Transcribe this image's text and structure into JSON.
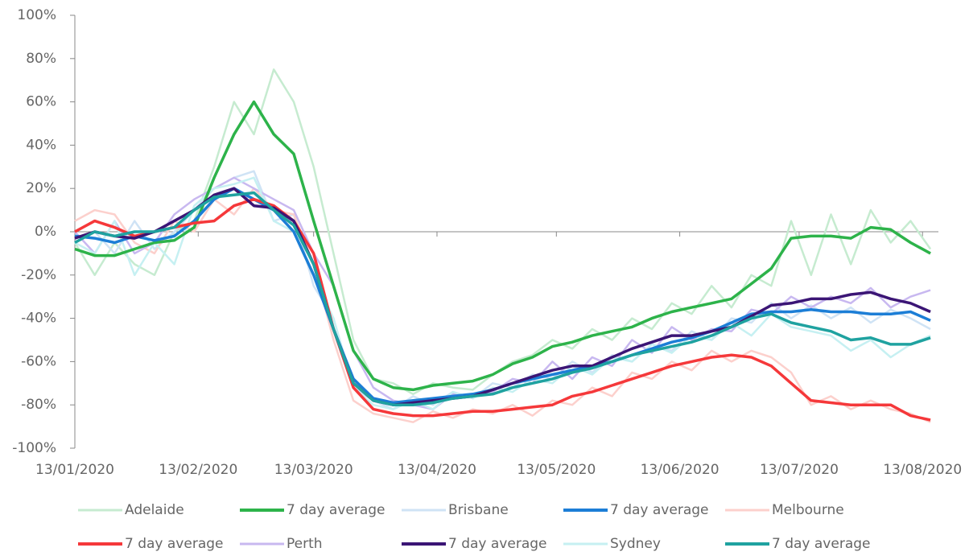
{
  "chart_data": {
    "type": "line",
    "x": [
      "13/01/2020",
      "18/01/2020",
      "23/01/2020",
      "28/01/2020",
      "02/02/2020",
      "07/02/2020",
      "12/02/2020",
      "17/02/2020",
      "22/02/2020",
      "27/02/2020",
      "03/03/2020",
      "08/03/2020",
      "13/03/2020",
      "18/03/2020",
      "23/03/2020",
      "28/03/2020",
      "02/04/2020",
      "07/04/2020",
      "12/04/2020",
      "17/04/2020",
      "22/04/2020",
      "27/04/2020",
      "02/05/2020",
      "07/05/2020",
      "12/05/2020",
      "17/05/2020",
      "22/05/2020",
      "27/05/2020",
      "01/06/2020",
      "06/06/2020",
      "11/06/2020",
      "16/06/2020",
      "21/06/2020",
      "26/06/2020",
      "01/07/2020",
      "06/07/2020",
      "11/07/2020",
      "16/07/2020",
      "21/07/2020",
      "26/07/2020",
      "31/07/2020",
      "05/08/2020",
      "10/08/2020",
      "15/08/2020"
    ],
    "series": [
      {
        "name": "Adelaide",
        "color": "#c6ebd0",
        "width": 2.5,
        "values": [
          -5,
          -20,
          -5,
          -15,
          -20,
          0,
          5,
          30,
          60,
          45,
          75,
          60,
          30,
          -10,
          -50,
          -68,
          -70,
          -75,
          -70,
          -72,
          -73,
          -66,
          -60,
          -57,
          -50,
          -54,
          -45,
          -50,
          -40,
          -45,
          -33,
          -38,
          -25,
          -35,
          -20,
          -25,
          5,
          -20,
          8,
          -15,
          10,
          -5,
          5,
          -8
        ]
      },
      {
        "name": "7 day average",
        "color": "#2db34a",
        "width": 3.5,
        "values": [
          -8,
          -11,
          -11,
          -8,
          -5,
          -4,
          2,
          25,
          45,
          60,
          45,
          36,
          5,
          -25,
          -55,
          -68,
          -72,
          -73,
          -71,
          -70,
          -69,
          -66,
          -61,
          -58,
          -53,
          -51,
          -48,
          -46,
          -44,
          -40,
          -37,
          -35,
          -33,
          -31,
          -24,
          -17,
          -3,
          -2,
          -2,
          -3,
          2,
          1,
          -5,
          -10
        ]
      },
      {
        "name": "Brisbane",
        "color": "#cfe3f5",
        "width": 2.5,
        "values": [
          -5,
          0,
          -10,
          5,
          -8,
          0,
          10,
          20,
          25,
          28,
          5,
          8,
          -25,
          -40,
          -72,
          -78,
          -82,
          -76,
          -80,
          -74,
          -77,
          -70,
          -72,
          -66,
          -68,
          -60,
          -65,
          -57,
          -60,
          -52,
          -55,
          -46,
          -50,
          -40,
          -42,
          -33,
          -40,
          -34,
          -40,
          -35,
          -42,
          -36,
          -40,
          -45
        ]
      },
      {
        "name": "7 day average",
        "color": "#1c7ed6",
        "width": 3.5,
        "values": [
          -2,
          -3,
          -5,
          -2,
          -4,
          -2,
          5,
          15,
          20,
          15,
          10,
          0,
          -20,
          -45,
          -68,
          -77,
          -79,
          -78,
          -77,
          -76,
          -75,
          -73,
          -70,
          -68,
          -66,
          -64,
          -62,
          -60,
          -57,
          -54,
          -51,
          -49,
          -46,
          -42,
          -38,
          -37,
          -37,
          -36,
          -37,
          -37,
          -38,
          -38,
          -37,
          -41
        ]
      },
      {
        "name": "Melbourne",
        "color": "#fcd0cc",
        "width": 2.5,
        "values": [
          5,
          10,
          8,
          -5,
          -10,
          5,
          0,
          15,
          8,
          20,
          10,
          8,
          -15,
          -50,
          -78,
          -84,
          -86,
          -88,
          -83,
          -86,
          -82,
          -84,
          -80,
          -85,
          -78,
          -80,
          -72,
          -76,
          -65,
          -68,
          -60,
          -64,
          -55,
          -60,
          -55,
          -58,
          -65,
          -80,
          -76,
          -82,
          -78,
          -82,
          -84,
          -88
        ]
      },
      {
        "name": "7 day average",
        "color": "#f5383a",
        "width": 3.5,
        "values": [
          0,
          5,
          2,
          -2,
          0,
          2,
          4,
          5,
          12,
          15,
          12,
          5,
          -10,
          -45,
          -72,
          -82,
          -84,
          -85,
          -85,
          -84,
          -83,
          -83,
          -82,
          -81,
          -80,
          -76,
          -74,
          -71,
          -68,
          -65,
          -62,
          -60,
          -58,
          -57,
          -58,
          -62,
          -70,
          -78,
          -79,
          -80,
          -80,
          -80,
          -85,
          -87
        ]
      },
      {
        "name": "Perth",
        "color": "#c8b8f0",
        "width": 2.5,
        "values": [
          0,
          -10,
          5,
          -10,
          -5,
          8,
          15,
          20,
          25,
          20,
          15,
          10,
          -10,
          -25,
          -55,
          -72,
          -78,
          -80,
          -82,
          -75,
          -76,
          -74,
          -68,
          -70,
          -60,
          -68,
          -58,
          -62,
          -50,
          -56,
          -44,
          -50,
          -45,
          -46,
          -36,
          -38,
          -30,
          -35,
          -30,
          -33,
          -26,
          -35,
          -30,
          -27
        ]
      },
      {
        "name": "7 day average",
        "color": "#3b1575",
        "width": 3.5,
        "values": [
          -3,
          0,
          -2,
          -3,
          0,
          5,
          10,
          17,
          20,
          12,
          11,
          5,
          -15,
          -45,
          -70,
          -78,
          -80,
          -79,
          -78,
          -77,
          -76,
          -73,
          -70,
          -67,
          -64,
          -62,
          -62,
          -58,
          -54,
          -51,
          -48,
          -48,
          -46,
          -44,
          -39,
          -34,
          -33,
          -31,
          -31,
          -29,
          -28,
          -31,
          -33,
          -37
        ]
      },
      {
        "name": "Sydney",
        "color": "#c6f0f2",
        "width": 2.5,
        "values": [
          -5,
          -10,
          5,
          -20,
          -5,
          -15,
          12,
          20,
          22,
          25,
          5,
          0,
          -20,
          -40,
          -72,
          -80,
          -82,
          -78,
          -82,
          -74,
          -77,
          -72,
          -74,
          -68,
          -70,
          -62,
          -66,
          -58,
          -60,
          -52,
          -56,
          -48,
          -50,
          -42,
          -48,
          -38,
          -44,
          -46,
          -48,
          -55,
          -50,
          -58,
          -52,
          -48
        ]
      },
      {
        "name": "7 day average",
        "color": "#1fa2a0",
        "width": 3.5,
        "values": [
          -5,
          0,
          -2,
          0,
          0,
          2,
          10,
          16,
          17,
          18,
          10,
          3,
          -15,
          -45,
          -70,
          -78,
          -80,
          -80,
          -79,
          -77,
          -76,
          -75,
          -72,
          -70,
          -68,
          -65,
          -63,
          -60,
          -57,
          -55,
          -53,
          -51,
          -48,
          -44,
          -40,
          -38,
          -42,
          -44,
          -46,
          -50,
          -49,
          -52,
          -52,
          -49
        ]
      }
    ],
    "xlim": [
      "13/01/2020",
      "17/08/2020"
    ],
    "xticks": [
      "13/01/2020",
      "13/02/2020",
      "13/03/2020",
      "13/04/2020",
      "13/05/2020",
      "13/06/2020",
      "13/07/2020",
      "13/08/2020"
    ],
    "ylim": [
      -100,
      100
    ],
    "yticks": [
      {
        "value": -100,
        "label": "-100%"
      },
      {
        "value": -80,
        "label": "-80%"
      },
      {
        "value": -60,
        "label": "-60%"
      },
      {
        "value": -40,
        "label": "-40%"
      },
      {
        "value": -20,
        "label": "-20%"
      },
      {
        "value": 0,
        "label": "0%"
      },
      {
        "value": 20,
        "label": "20%"
      },
      {
        "value": 40,
        "label": "40%"
      },
      {
        "value": 60,
        "label": "60%"
      },
      {
        "value": 80,
        "label": "80%"
      },
      {
        "value": 100,
        "label": "100%"
      }
    ],
    "legend": "bottom"
  }
}
